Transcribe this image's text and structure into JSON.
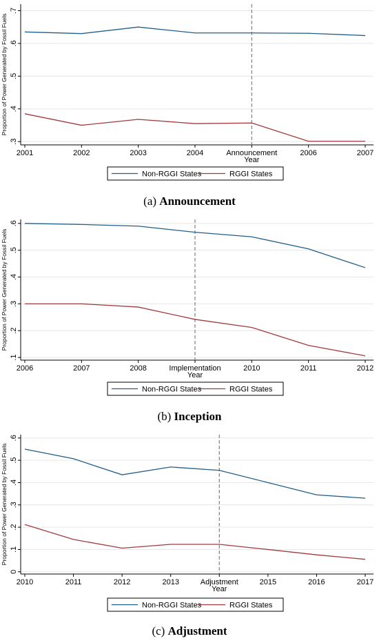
{
  "colors": {
    "non_rggi": "#1f5d8a",
    "rggi": "#a0393c",
    "grid": "#e6e6e6",
    "vline": "#808080",
    "axis": "#000000"
  },
  "chart_data": [
    {
      "type": "line",
      "caption_label": "(a)",
      "caption_title": "Announcement",
      "xlabel": "Year",
      "ylabel": "Proportion of Power Generated by Fossil Fuels",
      "x_ticks": [
        "2001",
        "2002",
        "2003",
        "2004",
        "Announcement",
        "2006",
        "2007"
      ],
      "event_index": 4,
      "y_ticks": [
        0.3,
        0.4,
        0.5,
        0.6,
        0.7
      ],
      "y_tick_labels": [
        ".3",
        ".4",
        ".5",
        ".6",
        ".7"
      ],
      "ylim": [
        0.29,
        0.72
      ],
      "grid": true,
      "legend_position": "bottom",
      "series": [
        {
          "name": "Non-RGGI States",
          "color_key": "non_rggi",
          "values": [
            0.635,
            0.63,
            0.65,
            0.632,
            0.632,
            0.631,
            0.624
          ]
        },
        {
          "name": "RGGI States",
          "color_key": "rggi",
          "values": [
            0.385,
            0.35,
            0.368,
            0.355,
            0.357,
            0.301,
            0.301
          ]
        }
      ]
    },
    {
      "type": "line",
      "caption_label": "(b)",
      "caption_title": "Inception",
      "xlabel": "Year",
      "ylabel": "Proportion of Power Generated by Fossil Fuels",
      "x_ticks": [
        "2006",
        "2007",
        "2008",
        "Implementation",
        "2010",
        "2011",
        "2012"
      ],
      "event_index": 3,
      "y_ticks": [
        0.1,
        0.2,
        0.3,
        0.4,
        0.5,
        0.6
      ],
      "y_tick_labels": [
        ".1",
        ".2",
        ".3",
        ".4",
        ".5",
        ".6"
      ],
      "ylim": [
        0.09,
        0.615
      ],
      "grid": true,
      "legend_position": "bottom",
      "series": [
        {
          "name": "Non-RGGI States",
          "color_key": "non_rggi",
          "values": [
            0.6,
            0.596,
            0.59,
            0.567,
            0.55,
            0.505,
            0.435
          ]
        },
        {
          "name": "RGGI States",
          "color_key": "rggi",
          "values": [
            0.3,
            0.3,
            0.288,
            0.242,
            0.212,
            0.145,
            0.106
          ]
        }
      ]
    },
    {
      "type": "line",
      "caption_label": "(c)",
      "caption_title": "Adjustment",
      "xlabel": "Year",
      "ylabel": "Proportion of Power Generated by Fossil Fuels",
      "x_ticks": [
        "2010",
        "2011",
        "2012",
        "2013",
        "Adjustment",
        "2015",
        "2016",
        "2017"
      ],
      "event_index": 4,
      "y_ticks": [
        0,
        0.1,
        0.2,
        0.3,
        0.4,
        0.5,
        0.6
      ],
      "y_tick_labels": [
        "0",
        ".1",
        ".2",
        ".3",
        ".4",
        ".5",
        ".6"
      ],
      "ylim": [
        -0.01,
        0.615
      ],
      "grid": true,
      "legend_position": "bottom",
      "series": [
        {
          "name": "Non-RGGI States",
          "color_key": "non_rggi",
          "values": [
            0.55,
            0.507,
            0.435,
            0.47,
            0.455,
            0.4,
            0.345,
            0.33
          ]
        },
        {
          "name": "RGGI States",
          "color_key": "rggi",
          "values": [
            0.212,
            0.145,
            0.106,
            0.123,
            0.123,
            0.1,
            0.076,
            0.056
          ]
        }
      ]
    }
  ]
}
